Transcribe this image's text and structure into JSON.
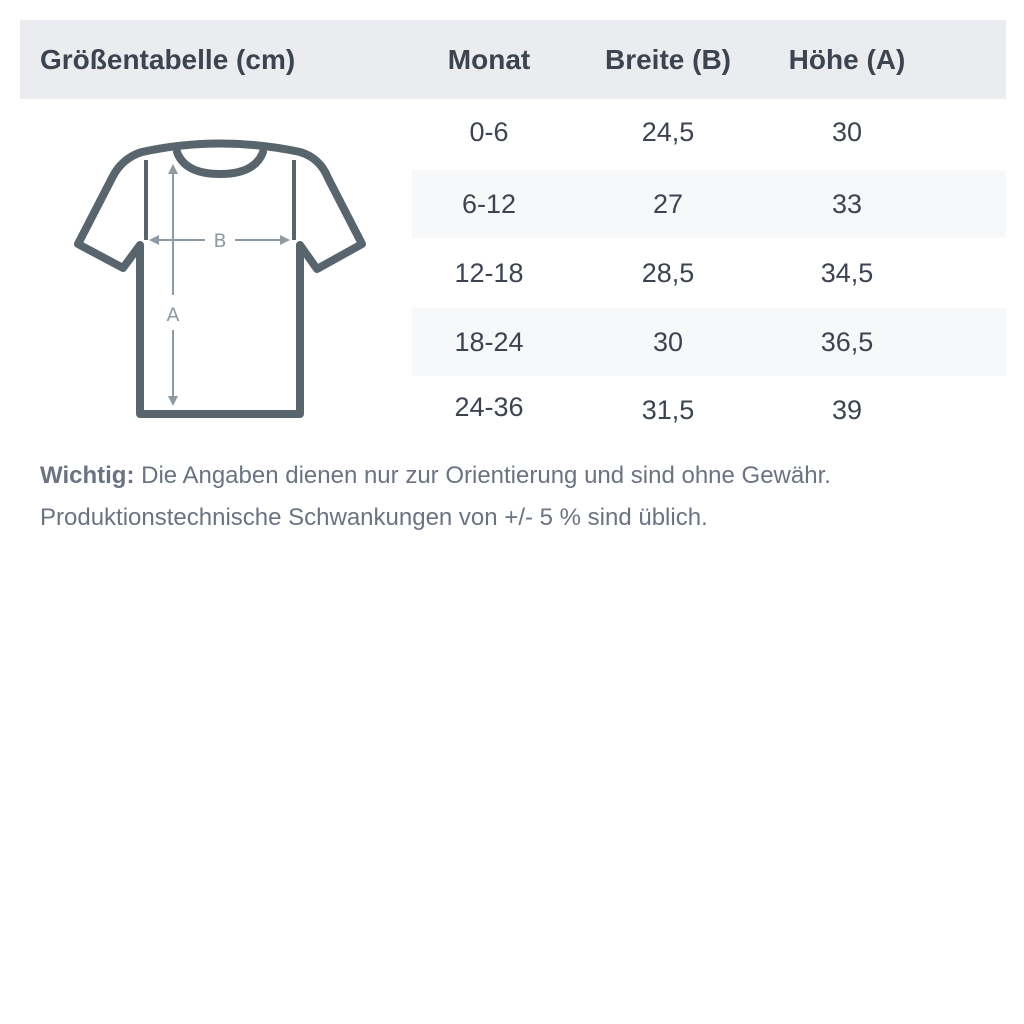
{
  "header": {
    "title": "Größentabelle (cm)",
    "columns": [
      "Monat",
      "Breite (B)",
      "Höhe (A)"
    ]
  },
  "rows": [
    [
      "0-6",
      "24,5",
      "30"
    ],
    [
      "6-12",
      "27",
      "33"
    ],
    [
      "12-18",
      "28,5",
      "34,5"
    ],
    [
      "18-24",
      "30",
      "36,5"
    ],
    [
      "24-36",
      "31,5",
      "39"
    ]
  ],
  "diagram": {
    "label_width": "B",
    "label_height": "A"
  },
  "note": {
    "label": "Wichtig:",
    "text": " Die Angaben dienen nur zur Orientierung und sind ohne Gewähr.",
    "text2": "Produktionstechnische Schwankungen von +/- 5 % sind üblich."
  },
  "colors": {
    "header_bg": "#ebecef",
    "stripe_bg": "#f7f8fa",
    "text": "#3d4451",
    "shirt": "#58656d",
    "arrow": "#8e9aa3"
  }
}
